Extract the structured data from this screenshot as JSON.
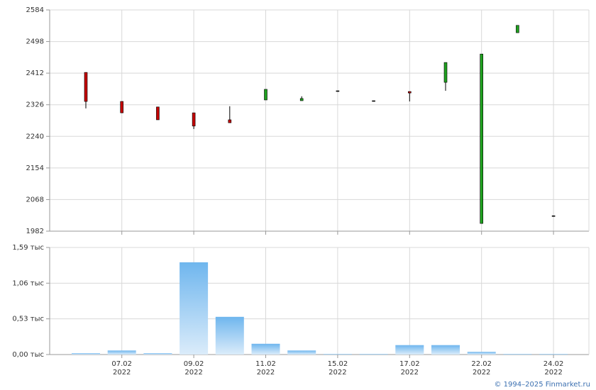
{
  "chart_data": [
    {
      "type": "candlestick",
      "categories": [
        null,
        "07.02",
        null,
        "09.02",
        null,
        "11.02",
        null,
        "15.02",
        null,
        "17.02",
        null,
        "22.02",
        null,
        "24.02"
      ],
      "category_sublabels": [
        null,
        "2022",
        null,
        "2022",
        null,
        "2022",
        null,
        "2022",
        null,
        "2022",
        null,
        "2022",
        null,
        "2022"
      ],
      "open": [
        2414,
        2335,
        2320,
        2304,
        2285,
        2339,
        2337,
        2364,
        2337,
        2362,
        2387,
        2003,
        2522,
        2024
      ],
      "high": [
        2414,
        2335,
        2320,
        2304,
        2322,
        2368,
        2349,
        2364,
        2337,
        2362,
        2441,
        2464,
        2542,
        2024
      ],
      "low": [
        2316,
        2304,
        2285,
        2260,
        2277,
        2339,
        2337,
        2364,
        2337,
        2335,
        2364,
        2003,
        2522,
        2024
      ],
      "close": [
        2335,
        2304,
        2285,
        2268,
        2277,
        2368,
        2343,
        2364,
        2337,
        2358,
        2441,
        2464,
        2542,
        2024
      ],
      "up_color": "#1fa01f",
      "down_color": "#c40000",
      "ylim": [
        1982,
        2584
      ],
      "yticks": [
        1982,
        2068,
        2154,
        2240,
        2326,
        2412,
        2498,
        2584
      ],
      "grid": true
    },
    {
      "type": "bar",
      "values": [
        0.02,
        0.06,
        0.02,
        1.37,
        0.56,
        0.16,
        0.06,
        0.01,
        0.01,
        0.14,
        0.14,
        0.04,
        0.01,
        0.01
      ],
      "color": "#7dbdf0",
      "ylim": [
        0,
        1.59
      ],
      "yticks": [
        {
          "value": 0,
          "label": "0,00 тыс"
        },
        {
          "value": 0.53,
          "label": "0,53 тыс"
        },
        {
          "value": 1.06,
          "label": "1,06 тыс"
        },
        {
          "value": 1.59,
          "label": "1,59 тыс"
        }
      ],
      "grid": true
    }
  ],
  "footer": "© 1994–2025 Finmarket.ru"
}
